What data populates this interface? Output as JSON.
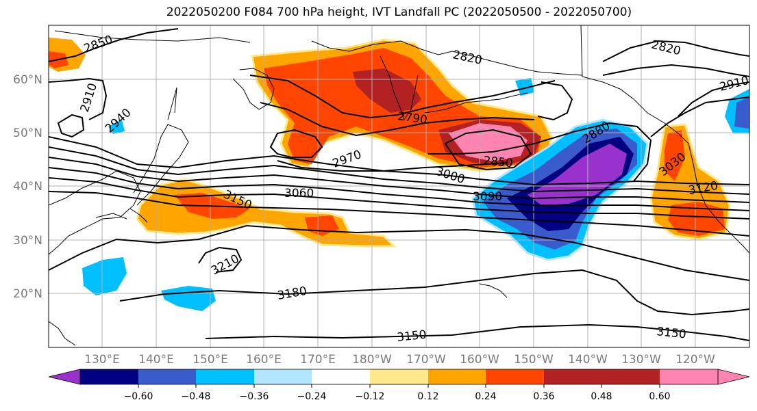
{
  "title": "2022050200 F084 700 hPa height, IVT Landfall PC (2022050500 - 2022050700)",
  "axes": {
    "lat_labels": [
      "60°N",
      "50°N",
      "40°N",
      "30°N",
      "20°N"
    ],
    "lon_labels": [
      "130°E",
      "140°E",
      "150°E",
      "160°E",
      "170°E",
      "180°W",
      "170°W",
      "160°W",
      "150°W",
      "140°W",
      "130°W",
      "120°W"
    ]
  },
  "contour_labels": [
    "2850",
    "2910",
    "2940",
    "2820",
    "2790",
    "2820",
    "2910",
    "2970",
    "3060",
    "3150",
    "3000",
    "2850",
    "3090",
    "2880",
    "3030",
    "3120",
    "3210",
    "3180",
    "3150",
    "3150"
  ],
  "colorbar": {
    "ticks": [
      "−0.60",
      "−0.48",
      "−0.36",
      "−0.24",
      "−0.12",
      "0.12",
      "0.24",
      "0.36",
      "0.48",
      "0.60"
    ],
    "colors": [
      "#9932cc",
      "#000080",
      "#3a5bcc",
      "#00bfff",
      "#b3e5fc",
      "#ffffff",
      "#ffe98a",
      "#ffa500",
      "#ff4500",
      "#b22222",
      "#ff85b0"
    ]
  },
  "colors": {
    "contour": "#000000",
    "coast": "#000000",
    "grid": "#b0b0b0",
    "axis_label": "#7a7a7a"
  }
}
